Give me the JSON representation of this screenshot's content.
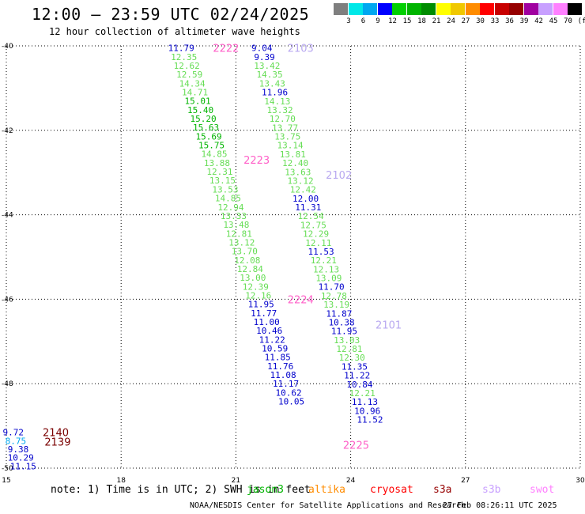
{
  "title": "12:00 – 23:59 UTC 02/24/2025",
  "subtitle": "12 hour collection of altimeter wave heights",
  "legend": {
    "unit": "(ft)",
    "bins": [
      {
        "label": "3",
        "color": "#7f7f7f"
      },
      {
        "label": "6",
        "color": "#00e8e8"
      },
      {
        "label": "9",
        "color": "#00a8f0"
      },
      {
        "label": "12",
        "color": "#0000ff"
      },
      {
        "label": "15",
        "color": "#00d000"
      },
      {
        "label": "18",
        "color": "#00b400"
      },
      {
        "label": "21",
        "color": "#008c00"
      },
      {
        "label": "24",
        "color": "#ffff00"
      },
      {
        "label": "27",
        "color": "#f0c800"
      },
      {
        "label": "30",
        "color": "#ff8c00"
      },
      {
        "label": "33",
        "color": "#ff0000"
      },
      {
        "label": "36",
        "color": "#c80000"
      },
      {
        "label": "39",
        "color": "#960000"
      },
      {
        "label": "42",
        "color": "#a000a0"
      },
      {
        "label": "45",
        "color": "#c8a0ff"
      },
      {
        "label": "70",
        "color": "#ff80ff"
      },
      {
        "label": "",
        "color": "#000000"
      }
    ]
  },
  "map": {
    "lon_ticks": [
      "15",
      "18",
      "21",
      "24",
      "27",
      "30"
    ],
    "lat_ticks": [
      "-40",
      "-42",
      "-44",
      "-46",
      "-48",
      "-50"
    ]
  },
  "passes": [
    {
      "id": "pass-2222",
      "text": "2222",
      "color": "#ff60c8",
      "lon": 20.4,
      "lat": -40.05
    },
    {
      "id": "pass-2103",
      "text": "2103",
      "color": "#b8a8f0",
      "lon": 22.35,
      "lat": -40.05
    },
    {
      "id": "pass-2223",
      "text": "2223",
      "color": "#ff60c8",
      "lon": 21.2,
      "lat": -42.7
    },
    {
      "id": "pass-2102",
      "text": "2102",
      "color": "#b8a8f0",
      "lon": 23.35,
      "lat": -43.05
    },
    {
      "id": "pass-2224",
      "text": "2224",
      "color": "#ff60c8",
      "lon": 22.35,
      "lat": -46.0
    },
    {
      "id": "pass-2101",
      "text": "2101",
      "color": "#b8a8f0",
      "lon": 24.65,
      "lat": -46.6
    },
    {
      "id": "pass-2225",
      "text": "2225",
      "color": "#ff60c8",
      "lon": 23.8,
      "lat": -49.45
    },
    {
      "id": "pass-2140",
      "text": "2140",
      "color": "#7a0000",
      "lon": 15.95,
      "lat": -49.15
    },
    {
      "id": "pass-2139",
      "text": "2139",
      "color": "#7a0000",
      "lon": 16.0,
      "lat": -49.37
    }
  ],
  "tracks": [
    {
      "id": "track-a",
      "x0": 19.57,
      "y0": -40.05,
      "dlon": 0.072,
      "dlat": 0.2092,
      "values": [
        {
          "v": "11.79",
          "c": "#0000cc"
        },
        {
          "v": "12.35",
          "c": "#66dd55"
        },
        {
          "v": "12.62",
          "c": "#66dd55"
        },
        {
          "v": "12.59",
          "c": "#66dd55"
        },
        {
          "v": "14.34",
          "c": "#66dd55"
        },
        {
          "v": "14.71",
          "c": "#66dd55"
        },
        {
          "v": "15.01",
          "c": "#00b400"
        },
        {
          "v": "15.40",
          "c": "#00b400"
        },
        {
          "v": "15.20",
          "c": "#00b400"
        },
        {
          "v": "15.63",
          "c": "#00b400"
        },
        {
          "v": "15.69",
          "c": "#00b400"
        },
        {
          "v": "15.75",
          "c": "#00b400"
        },
        {
          "v": "14.85",
          "c": "#66dd55"
        },
        {
          "v": "13.88",
          "c": "#66dd55"
        },
        {
          "v": "12.31",
          "c": "#66dd55"
        },
        {
          "v": "13.15",
          "c": "#66dd55"
        },
        {
          "v": "13.53",
          "c": "#66dd55"
        },
        {
          "v": "14.85",
          "c": "#66dd55"
        },
        {
          "v": "12.94",
          "c": "#66dd55"
        },
        {
          "v": "13.33",
          "c": "#66dd55"
        },
        {
          "v": "13.48",
          "c": "#66dd55"
        },
        {
          "v": "12.81",
          "c": "#66dd55"
        },
        {
          "v": "13.12",
          "c": "#66dd55"
        },
        {
          "v": "13.70",
          "c": "#66dd55"
        },
        {
          "v": "12.08",
          "c": "#66dd55"
        },
        {
          "v": "12.84",
          "c": "#66dd55"
        },
        {
          "v": "13.00",
          "c": "#66dd55"
        },
        {
          "v": "12.39",
          "c": "#66dd55"
        },
        {
          "v": "12.16",
          "c": "#66dd55"
        },
        {
          "v": "11.95",
          "c": "#0000cc"
        },
        {
          "v": "11.77",
          "c": "#0000cc"
        },
        {
          "v": "11.00",
          "c": "#0000cc"
        },
        {
          "v": "10.46",
          "c": "#0000cc"
        },
        {
          "v": "11.22",
          "c": "#0000cc"
        },
        {
          "v": "10.59",
          "c": "#0000cc"
        },
        {
          "v": "11.85",
          "c": "#0000cc"
        },
        {
          "v": "11.76",
          "c": "#0000cc"
        },
        {
          "v": "11.08",
          "c": "#0000cc"
        },
        {
          "v": "11.17",
          "c": "#0000cc"
        },
        {
          "v": "10.62",
          "c": "#0000cc"
        },
        {
          "v": "10.05",
          "c": "#0000cc"
        }
      ]
    },
    {
      "id": "track-b",
      "x0": 21.68,
      "y0": -40.05,
      "dlon": 0.0672,
      "dlat": 0.2095,
      "values": [
        {
          "v": "9.04",
          "c": "#0000cc"
        },
        {
          "v": "9.39",
          "c": "#0000cc"
        },
        {
          "v": "13.42",
          "c": "#66dd55"
        },
        {
          "v": "14.35",
          "c": "#66dd55"
        },
        {
          "v": "13.43",
          "c": "#66dd55"
        },
        {
          "v": "11.96",
          "c": "#0000cc"
        },
        {
          "v": "14.13",
          "c": "#66dd55"
        },
        {
          "v": "13.32",
          "c": "#66dd55"
        },
        {
          "v": "12.70",
          "c": "#66dd55"
        },
        {
          "v": "13.77",
          "c": "#66dd55"
        },
        {
          "v": "13.75",
          "c": "#66dd55"
        },
        {
          "v": "13.14",
          "c": "#66dd55"
        },
        {
          "v": "13.81",
          "c": "#66dd55"
        },
        {
          "v": "12.40",
          "c": "#66dd55"
        },
        {
          "v": "13.63",
          "c": "#66dd55"
        },
        {
          "v": "13.12",
          "c": "#66dd55"
        },
        {
          "v": "12.42",
          "c": "#66dd55"
        },
        {
          "v": "12.00",
          "c": "#0000cc"
        },
        {
          "v": "11.31",
          "c": "#0000cc"
        },
        {
          "v": "12.54",
          "c": "#66dd55"
        },
        {
          "v": "12.75",
          "c": "#66dd55"
        },
        {
          "v": "12.29",
          "c": "#66dd55"
        },
        {
          "v": "12.11",
          "c": "#66dd55"
        },
        {
          "v": "11.53",
          "c": "#0000cc"
        },
        {
          "v": "12.21",
          "c": "#66dd55"
        },
        {
          "v": "12.13",
          "c": "#66dd55"
        },
        {
          "v": "13.09",
          "c": "#66dd55"
        },
        {
          "v": "11.70",
          "c": "#0000cc"
        },
        {
          "v": "12.78",
          "c": "#66dd55"
        },
        {
          "v": "13.19",
          "c": "#66dd55"
        },
        {
          "v": "11.87",
          "c": "#0000cc"
        },
        {
          "v": "10.38",
          "c": "#0000cc"
        },
        {
          "v": "11.95",
          "c": "#0000cc"
        },
        {
          "v": "13.03",
          "c": "#66dd55"
        },
        {
          "v": "12.81",
          "c": "#66dd55"
        },
        {
          "v": "12.30",
          "c": "#66dd55"
        },
        {
          "v": "11.35",
          "c": "#0000cc"
        },
        {
          "v": "11.22",
          "c": "#0000cc"
        },
        {
          "v": "10.84",
          "c": "#0000cc"
        },
        {
          "v": "12.21",
          "c": "#66dd55"
        },
        {
          "v": "11.13",
          "c": "#0000cc"
        },
        {
          "v": "10.96",
          "c": "#0000cc"
        },
        {
          "v": "11.52",
          "c": "#0000cc"
        }
      ]
    },
    {
      "id": "track-c",
      "x0": 15.18,
      "y0": -49.15,
      "dlon": 0.065,
      "dlat": 0.2,
      "values": [
        {
          "v": "9.72",
          "c": "#0000cc"
        },
        {
          "v": "8.75",
          "c": "#00a8f0"
        },
        {
          "v": "9.38",
          "c": "#0000cc"
        },
        {
          "v": "10.29",
          "c": "#0000cc"
        },
        {
          "v": "11.15",
          "c": "#0000cc"
        }
      ]
    }
  ],
  "note": "note: 1) Time is in UTC; 2) SWH is in feet",
  "satellites": [
    {
      "name": "jason3",
      "color": "#00b400"
    },
    {
      "name": "altika",
      "color": "#ff8c00"
    },
    {
      "name": "cryosat",
      "color": "#ff0000"
    },
    {
      "name": "s3a",
      "color": "#960000"
    },
    {
      "name": "s3b",
      "color": "#c8a0ff"
    },
    {
      "name": "swot",
      "color": "#ff80ff"
    }
  ],
  "footer": "NOAA/NESDIS Center for Satellite Applications and Research",
  "timestamp": "27 Feb 08:26:11 UTC 2025"
}
